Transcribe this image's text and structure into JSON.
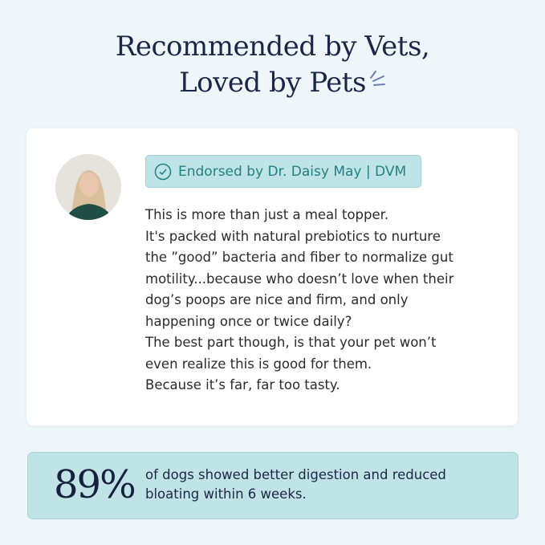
{
  "header": {
    "title_line1": "Recommended by Vets,",
    "title_line2": "Loved by Pets"
  },
  "testimonial": {
    "badge": "Endorsed by Dr. Daisy May | DVM",
    "badge_icon": "check-circle-icon",
    "lines": [
      "This is more than just a meal topper.",
      "It's packed with natural prebiotics to nurture",
      "the ”good” bacteria and fiber to normalize gut",
      "motility...because who doesn’t love when their",
      "dog’s poops are nice and firm, and only",
      "happening once or twice daily?",
      "The best part though, is that your pet won’t",
      "even realize this is good for them.",
      "Because it’s far, far too tasty."
    ]
  },
  "stat": {
    "value": "89%",
    "text_line1": "of dogs showed better digestion and reduced",
    "text_line2": "bloating within 6 weeks."
  },
  "colors": {
    "background": "#eef6fa",
    "navy": "#1c2748",
    "teal": "#24807f",
    "badge_bg": "#bfe4e7",
    "stat_bg": "#c0e3e6"
  }
}
